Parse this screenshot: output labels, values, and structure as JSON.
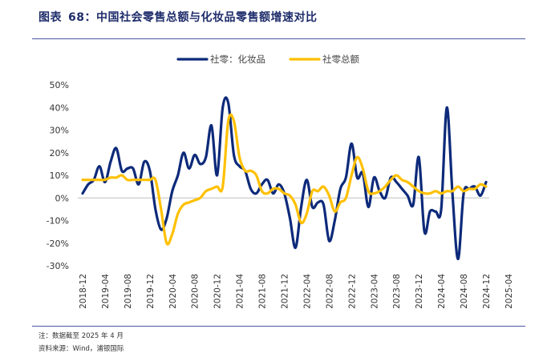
{
  "figure": {
    "label": "图表",
    "number": "68：",
    "title": "中国社会零售总额与化妆品零售额增速对比"
  },
  "notes": {
    "note": "注：数据截至 2025 年 4 月",
    "source": "资料来源：Wind，浦银国际"
  },
  "colors": {
    "navy": "#0d2a7a",
    "gold": "#ffc000"
  },
  "chart_data": {
    "type": "line",
    "title": "",
    "xlabel": "",
    "ylabel": "",
    "ylim": [
      -30,
      50
    ],
    "grid": false,
    "legend_position": "top-center",
    "yticks": [
      "50%",
      "40%",
      "30%",
      "20%",
      "10%",
      "0%",
      "-10%",
      "-20%",
      "-30%"
    ],
    "x_ticks": [
      "2018-12",
      "2019-04",
      "2019-08",
      "2019-12",
      "2020-04",
      "2020-08",
      "2020-12",
      "2021-04",
      "2021-08",
      "2021-12",
      "2022-04",
      "2022-08",
      "2022-12",
      "2023-04",
      "2023-08",
      "2023-12",
      "2024-04",
      "2024-08",
      "2024-12",
      "2025-04"
    ],
    "start_month": "2018-12",
    "series": [
      {
        "name": "社零：化妆品",
        "color": "#0d2a7a",
        "values": [
          2,
          6,
          8,
          14,
          7,
          16,
          22,
          12,
          13,
          13,
          6,
          16,
          12,
          -5,
          -14,
          -9,
          3,
          10,
          20,
          13,
          19,
          15,
          18,
          32,
          10,
          40,
          42,
          19,
          14,
          12,
          4,
          2,
          6,
          8,
          2,
          6,
          2,
          -9,
          -22,
          -4,
          8,
          -4,
          -2,
          -3,
          -19,
          -10,
          4,
          9,
          24,
          9,
          11,
          -4,
          9,
          3,
          0,
          9,
          7,
          4,
          1,
          -3,
          18,
          -15,
          -6,
          -6,
          -5,
          40,
          2,
          -27,
          2,
          4,
          5,
          1,
          7
        ]
      },
      {
        "name": "社零总额",
        "color": "#ffc000",
        "values": [
          8,
          8,
          8,
          8,
          8,
          9,
          9,
          10,
          8,
          8,
          8,
          8,
          8,
          8,
          -5,
          -20,
          -16,
          -7,
          -3,
          -2,
          -1,
          0,
          3,
          4,
          5,
          5,
          34,
          34,
          18,
          12,
          12,
          10,
          3,
          2,
          4,
          4,
          2,
          1,
          -3,
          -11,
          -7,
          3,
          3,
          5,
          1,
          -6,
          -2,
          0,
          10,
          18,
          13,
          3,
          2,
          3,
          5,
          8,
          10,
          8,
          7,
          5,
          3,
          2,
          2,
          3,
          2,
          3,
          3,
          5,
          3,
          4,
          4,
          6,
          5
        ]
      }
    ]
  }
}
